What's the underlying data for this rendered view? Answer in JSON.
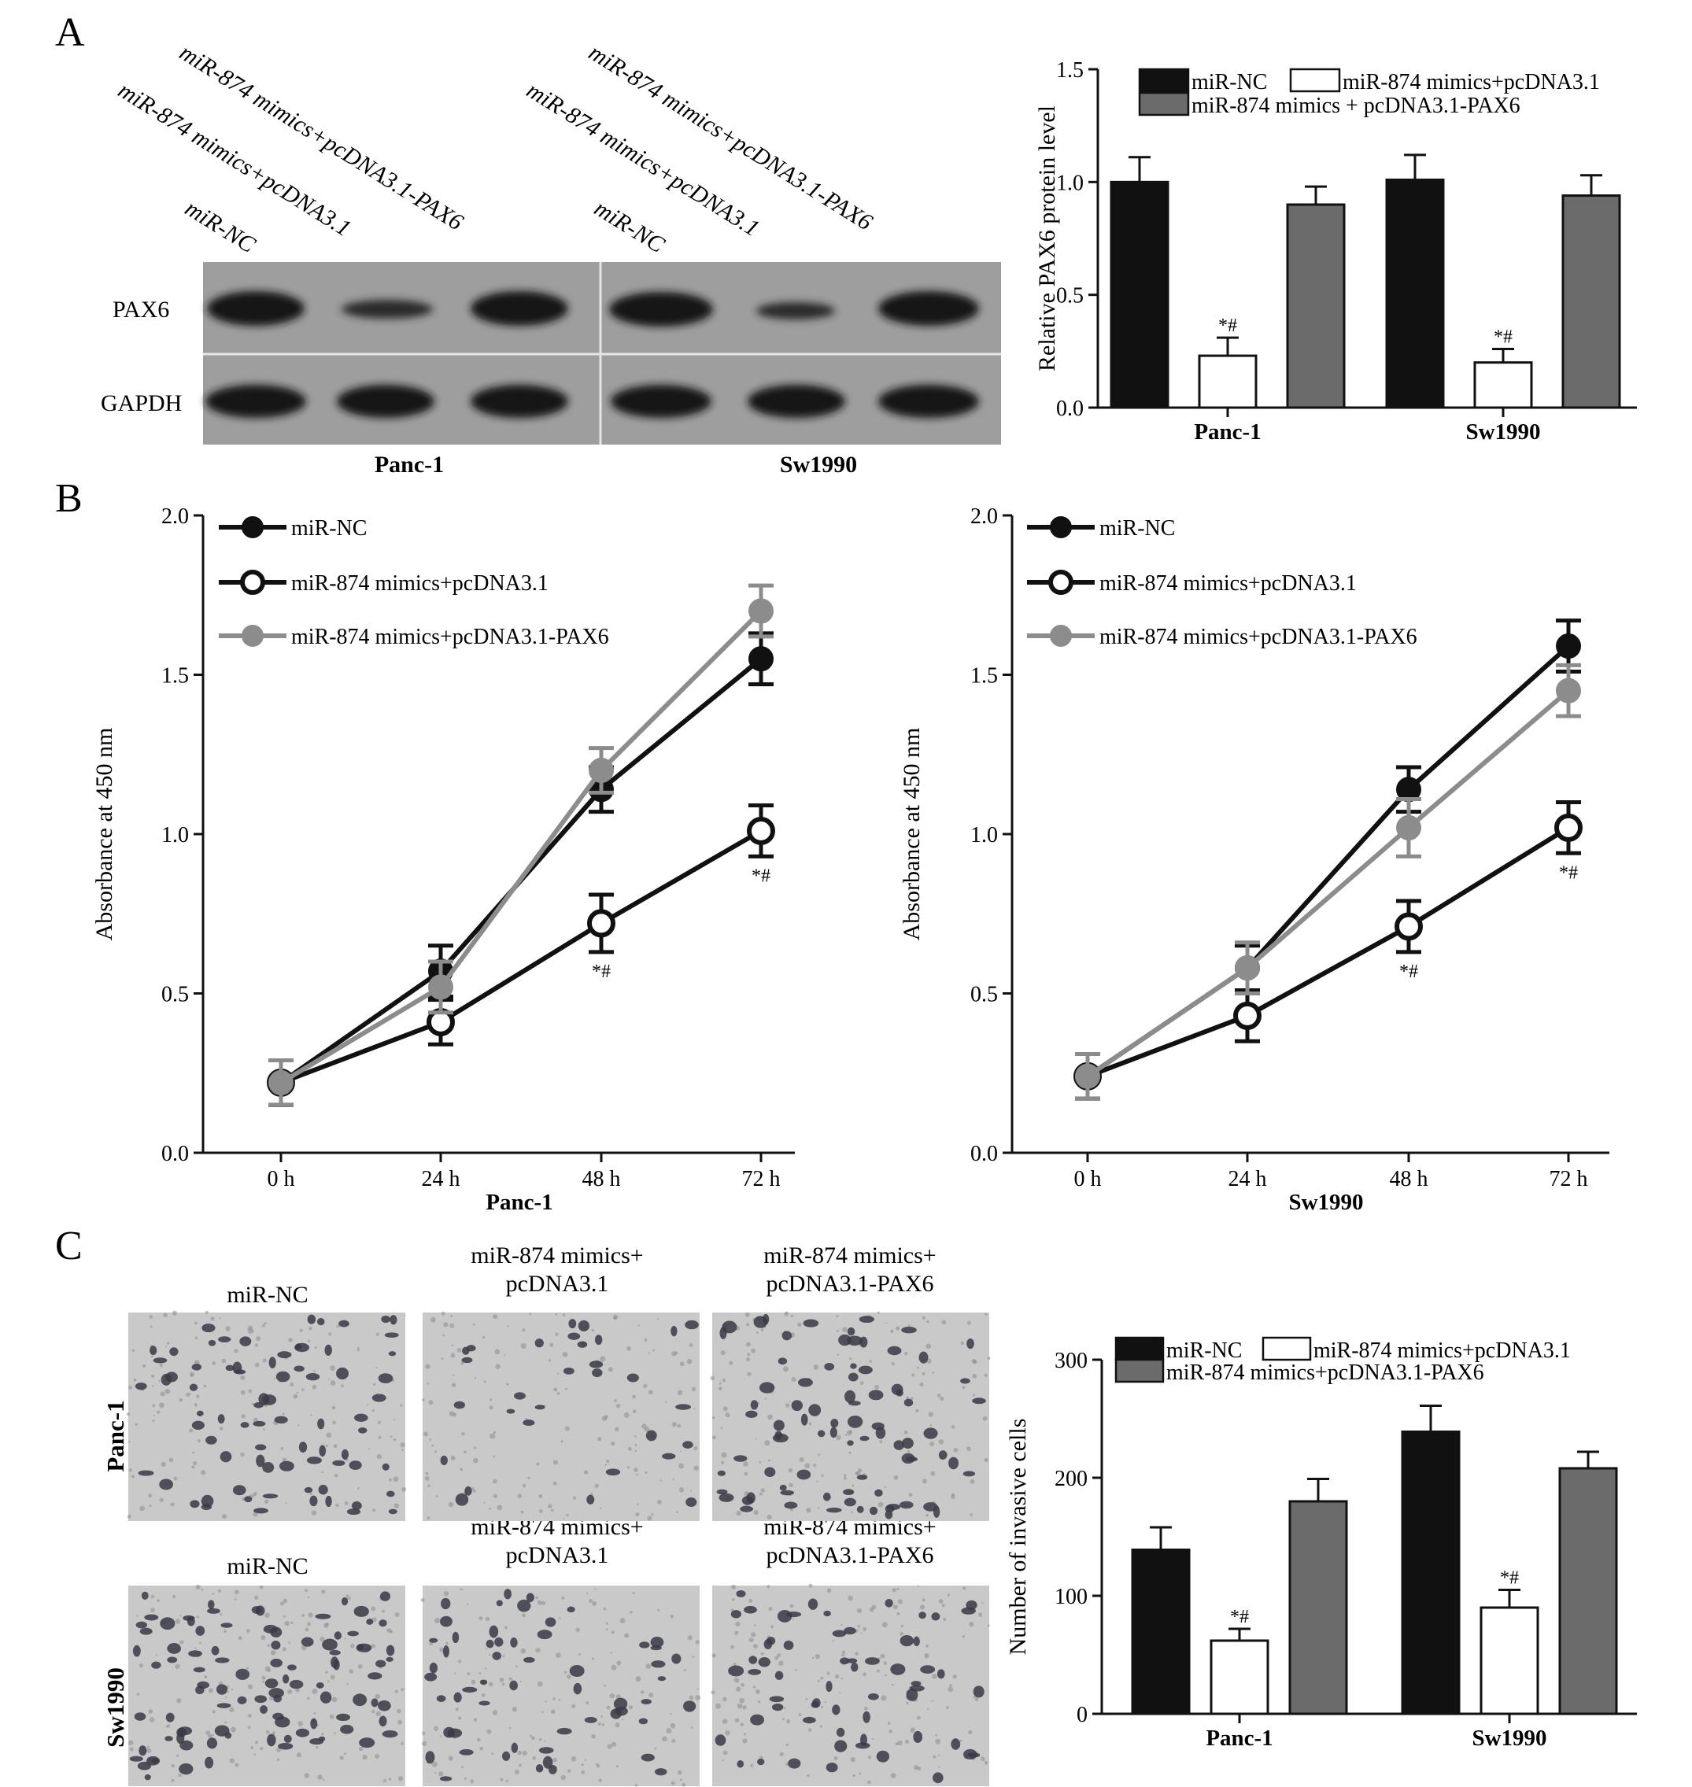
{
  "panels": {
    "A": "A",
    "B": "B",
    "C": "C"
  },
  "western_blot": {
    "lanes": [
      "miR-NC",
      "miR-874 mimics+pcDNA3.1",
      "miR-874 mimics+pcDNA3.1-PAX6"
    ],
    "rows": [
      "PAX6",
      "GAPDH"
    ],
    "groups": [
      "Panc-1",
      "Sw1990"
    ]
  },
  "micrographs": {
    "col_labels_top": [
      "miR-NC",
      "miR-874 mimics+\npcDNA3.1",
      "miR-874 mimics+\npcDNA3.1-PAX6"
    ],
    "col_labels_bottom": [
      "miR-NC",
      "miR-874 mimics+\npcDNA3.1",
      "miR-874 mimics+\npcDNA3.1-PAX6"
    ],
    "row_labels": [
      "Panc-1",
      "Sw1990"
    ]
  },
  "colors": {
    "miR_NC": "#111111",
    "mimics_pcDNA": "#ffffff",
    "mimics_PAX6": "#6b6b6b",
    "line_gray": "#8c8c8c"
  },
  "chart_data": [
    {
      "type": "bar",
      "categories": [
        "Panc-1",
        "Sw1990"
      ],
      "series": [
        {
          "name": "miR-NC",
          "values": [
            1.0,
            1.01
          ],
          "errors": [
            0.11,
            0.11
          ]
        },
        {
          "name": "miR-874 mimics+pcDNA3.1",
          "values": [
            0.23,
            0.2
          ],
          "errors": [
            0.08,
            0.06
          ]
        },
        {
          "name": "miR-874 mimics + pcDNA3.1-PAX6",
          "values": [
            0.9,
            0.94
          ],
          "errors": [
            0.08,
            0.09
          ]
        }
      ],
      "annotations": [
        "*#",
        "*#"
      ],
      "ylabel": "Relative PAX6 protein level",
      "ylim": [
        0,
        1.5
      ],
      "yticks": [
        "0.0",
        "0.5",
        "1.0",
        "1.5"
      ],
      "legend": "top"
    },
    {
      "type": "line",
      "x": [
        "0 h",
        "24 h",
        "48 h",
        "72 h"
      ],
      "series": [
        {
          "name": "miR-NC",
          "values": [
            0.22,
            0.57,
            1.14,
            1.55
          ],
          "errors": [
            0.07,
            0.08,
            0.07,
            0.08
          ]
        },
        {
          "name": "miR-874 mimics+pcDNA3.1",
          "values": [
            0.22,
            0.41,
            0.72,
            1.01
          ],
          "errors": [
            0.07,
            0.07,
            0.09,
            0.08
          ]
        },
        {
          "name": "miR-874 mimics+pcDNA3.1-PAX6",
          "values": [
            0.22,
            0.52,
            1.2,
            1.7
          ],
          "errors": [
            0.07,
            0.08,
            0.07,
            0.08
          ]
        }
      ],
      "annotations": [
        "*#",
        "*#"
      ],
      "xlabel": "Panc-1",
      "ylabel": "Absorbance at 450 nm",
      "ylim": [
        0,
        2.0
      ],
      "yticks": [
        "0.0",
        "0.5",
        "1.0",
        "1.5",
        "2.0"
      ],
      "legend": "top-left"
    },
    {
      "type": "line",
      "x": [
        "0 h",
        "24 h",
        "48 h",
        "72 h"
      ],
      "series": [
        {
          "name": "miR-NC",
          "values": [
            0.24,
            0.58,
            1.14,
            1.59
          ],
          "errors": [
            0.07,
            0.07,
            0.07,
            0.08
          ]
        },
        {
          "name": "miR-874 mimics+pcDNA3.1",
          "values": [
            0.24,
            0.43,
            0.71,
            1.02
          ],
          "errors": [
            0.07,
            0.08,
            0.08,
            0.08
          ]
        },
        {
          "name": "miR-874 mimics+pcDNA3.1-PAX6",
          "values": [
            0.24,
            0.58,
            1.02,
            1.45
          ],
          "errors": [
            0.07,
            0.08,
            0.09,
            0.08
          ]
        }
      ],
      "annotations": [
        "*#",
        "*#"
      ],
      "xlabel": "Sw1990",
      "ylabel": "Absorbance at 450 nm",
      "ylim": [
        0,
        2.0
      ],
      "yticks": [
        "0.0",
        "0.5",
        "1.0",
        "1.5",
        "2.0"
      ],
      "legend": "top-left"
    },
    {
      "type": "bar",
      "categories": [
        "Panc-1",
        "Sw1990"
      ],
      "series": [
        {
          "name": "miR-NC",
          "values": [
            139,
            239
          ],
          "errors": [
            19,
            22
          ]
        },
        {
          "name": "miR-874 mimics+pcDNA3.1",
          "values": [
            62,
            90
          ],
          "errors": [
            10,
            15
          ]
        },
        {
          "name": "miR-874 mimics+pcDNA3.1-PAX6",
          "values": [
            180,
            208
          ],
          "errors": [
            19,
            14
          ]
        }
      ],
      "annotations": [
        "*#",
        "*#"
      ],
      "ylabel": "Number of invasive cells",
      "ylim": [
        0,
        300
      ],
      "yticks": [
        "0",
        "100",
        "200",
        "300"
      ],
      "legend": "top"
    }
  ]
}
